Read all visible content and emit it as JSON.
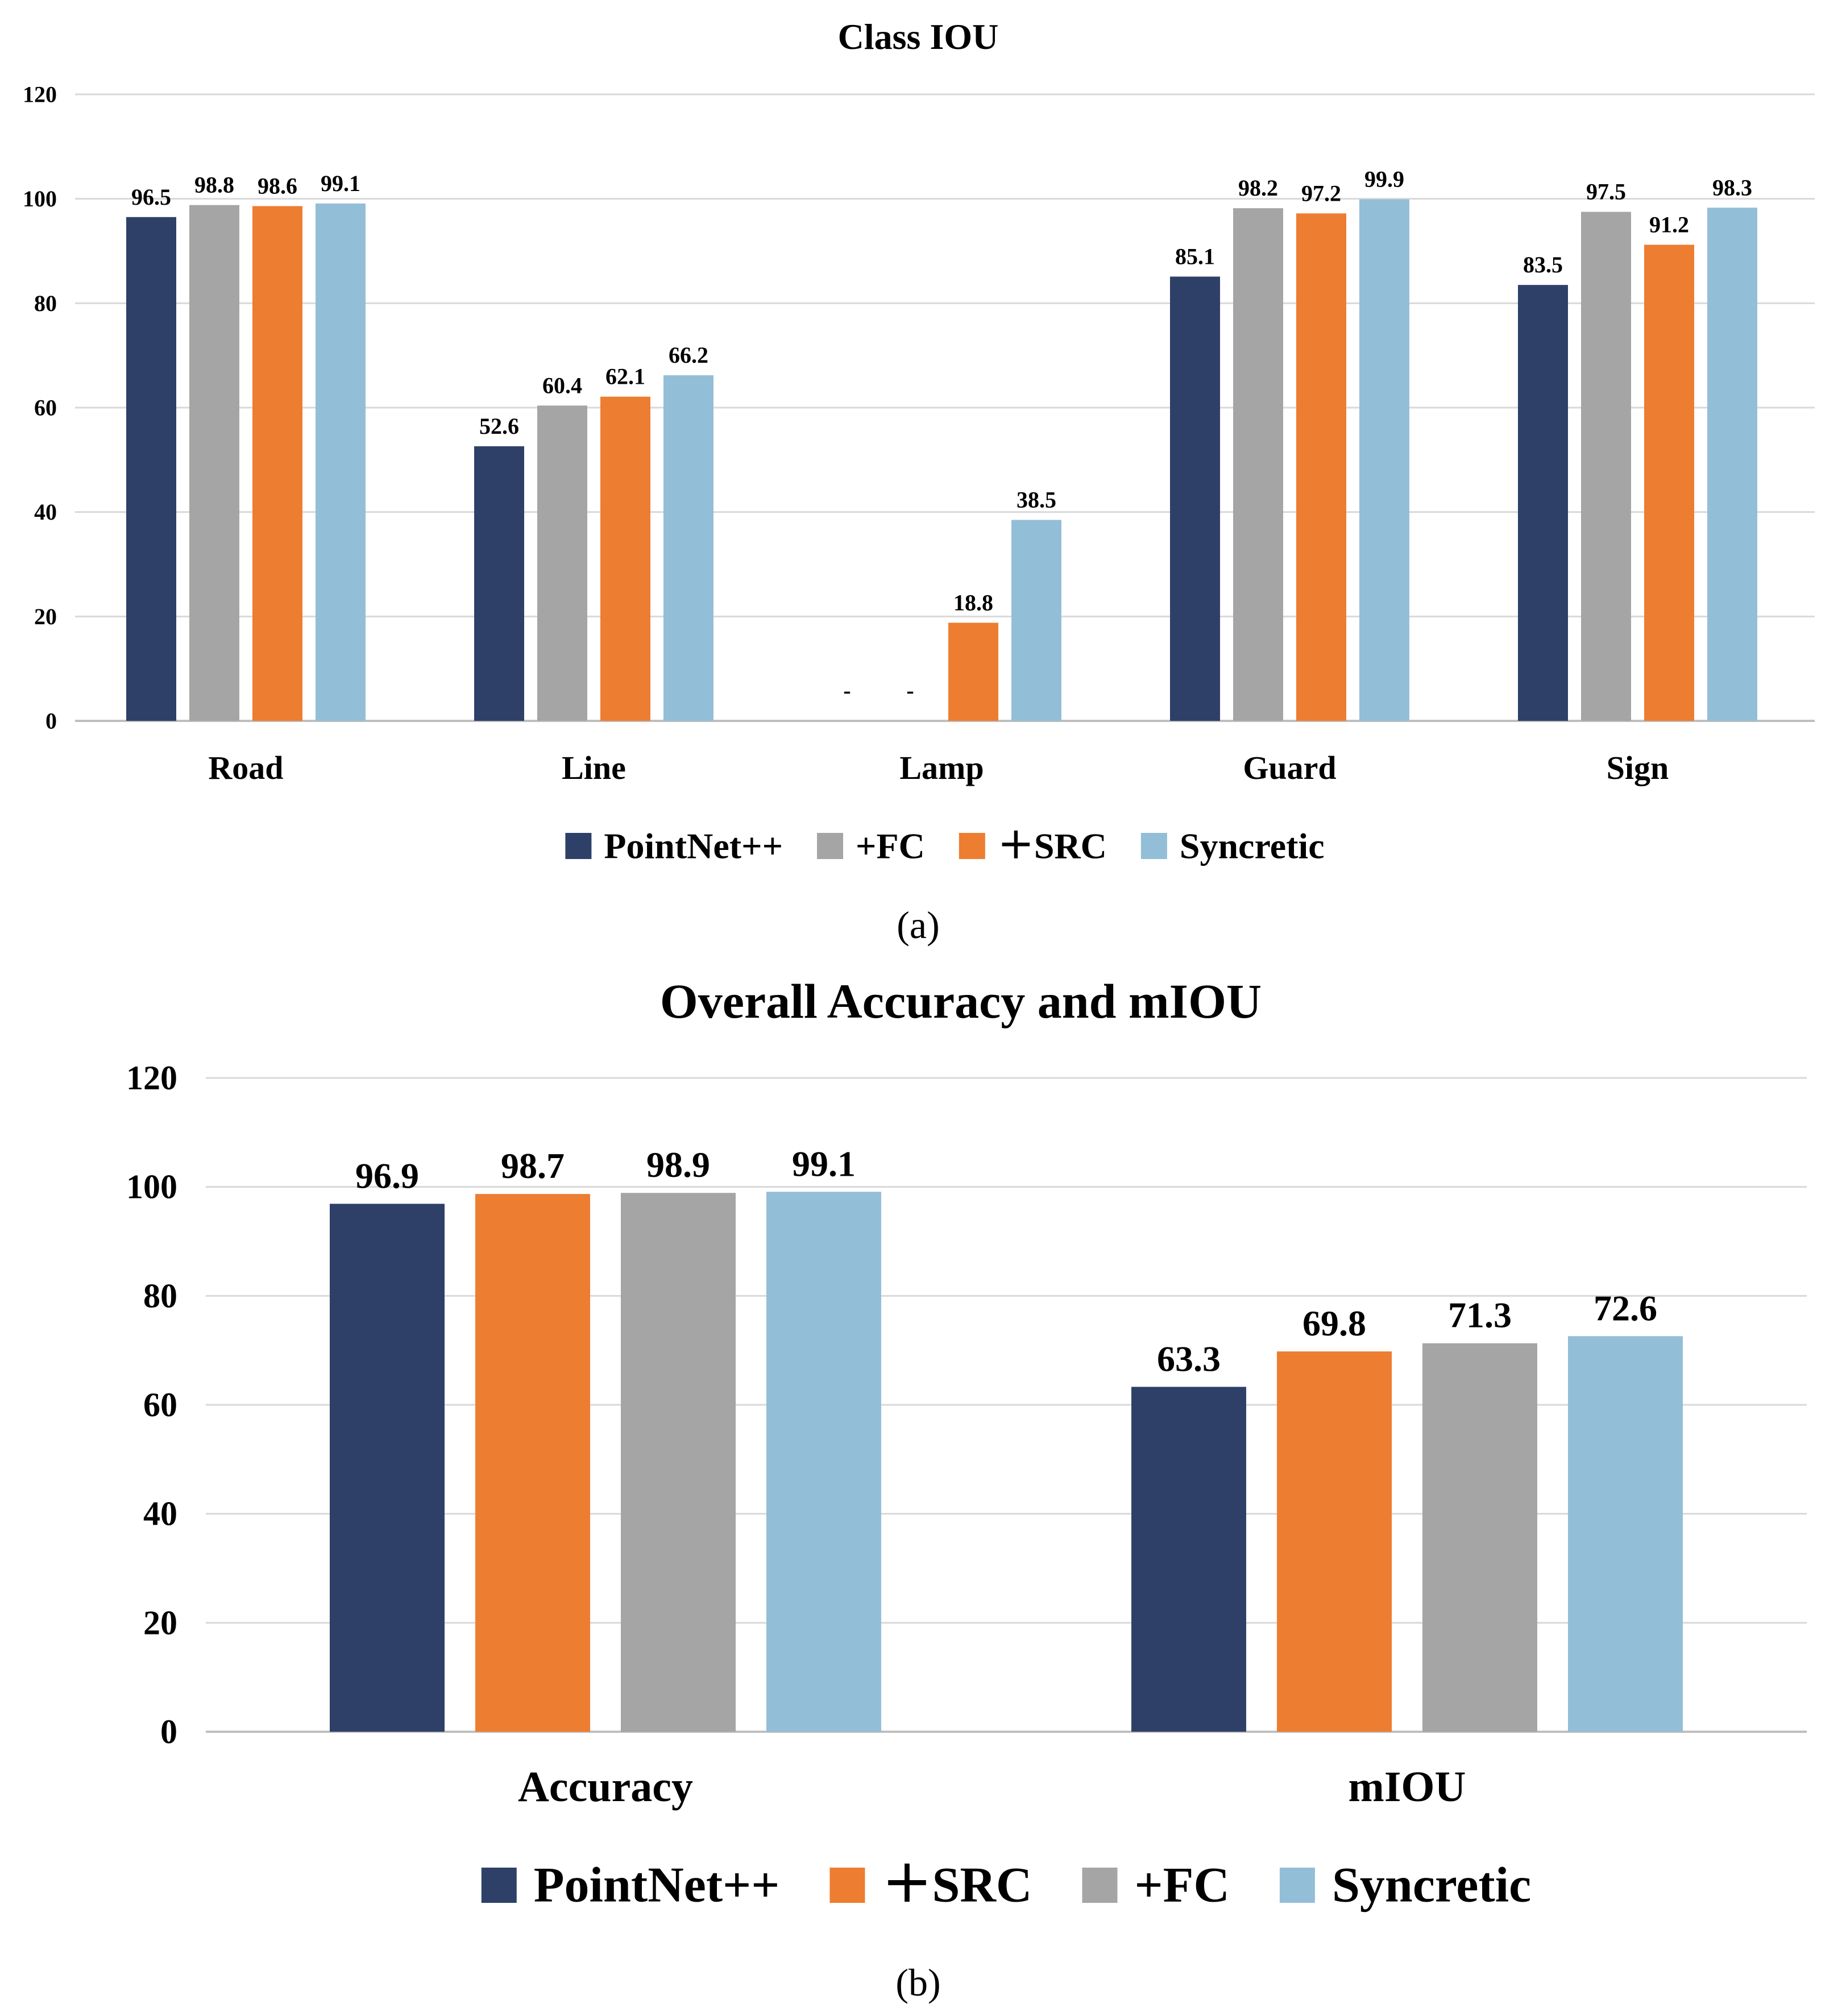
{
  "chart_data": [
    {
      "type": "bar",
      "title": "Class IOU",
      "caption": "(a)",
      "categories": [
        "Road",
        "Line",
        "Lamp",
        "Guard",
        "Sign"
      ],
      "ylim": [
        0,
        120
      ],
      "yticks": [
        0,
        20,
        40,
        60,
        80,
        100,
        120
      ],
      "grid": true,
      "legend_position": "bottom",
      "xlabel": "",
      "ylabel": "",
      "series": [
        {
          "name": "PointNet++",
          "color": "#2f4068",
          "values": [
            96.5,
            52.6,
            null,
            85.1,
            83.5
          ],
          "labels": [
            "96.5",
            "52.6",
            "-",
            "85.1",
            "83.5"
          ]
        },
        {
          "name": "+FC",
          "color": "#a5a5a5",
          "values": [
            98.8,
            60.4,
            null,
            98.2,
            97.5
          ],
          "labels": [
            "98.8",
            "60.4",
            "-",
            "98.2",
            "97.5"
          ]
        },
        {
          "name": "＋SRC",
          "color": "#ed7d31",
          "values": [
            98.6,
            62.1,
            18.8,
            97.2,
            91.2
          ],
          "labels": [
            "98.6",
            "62.1",
            "18.8",
            "97.2",
            "91.2"
          ]
        },
        {
          "name": "Syncretic",
          "color": "#93bed7",
          "values": [
            99.1,
            66.2,
            38.5,
            99.9,
            98.3
          ],
          "labels": [
            "99.1",
            "66.2",
            "38.5",
            "99.9",
            "98.3"
          ]
        }
      ]
    },
    {
      "type": "bar",
      "title": "Overall Accuracy and mIOU",
      "caption": "(b)",
      "categories": [
        "Accuracy",
        "mIOU"
      ],
      "ylim": [
        0,
        120
      ],
      "yticks": [
        0,
        20,
        40,
        60,
        80,
        100,
        120
      ],
      "grid": true,
      "legend_position": "bottom",
      "xlabel": "",
      "ylabel": "",
      "series": [
        {
          "name": "PointNet++",
          "color": "#2f4068",
          "values": [
            96.9,
            63.3
          ],
          "labels": [
            "96.9",
            "63.3"
          ]
        },
        {
          "name": "＋SRC",
          "color": "#ed7d31",
          "values": [
            98.7,
            69.8
          ],
          "labels": [
            "98.7",
            "69.8"
          ]
        },
        {
          "name": "+FC",
          "color": "#a5a5a5",
          "values": [
            98.9,
            71.3
          ],
          "labels": [
            "98.9",
            "71.3"
          ]
        },
        {
          "name": "Syncretic",
          "color": "#93bed7",
          "values": [
            99.1,
            72.6
          ],
          "labels": [
            "99.1",
            "72.6"
          ]
        }
      ]
    }
  ]
}
